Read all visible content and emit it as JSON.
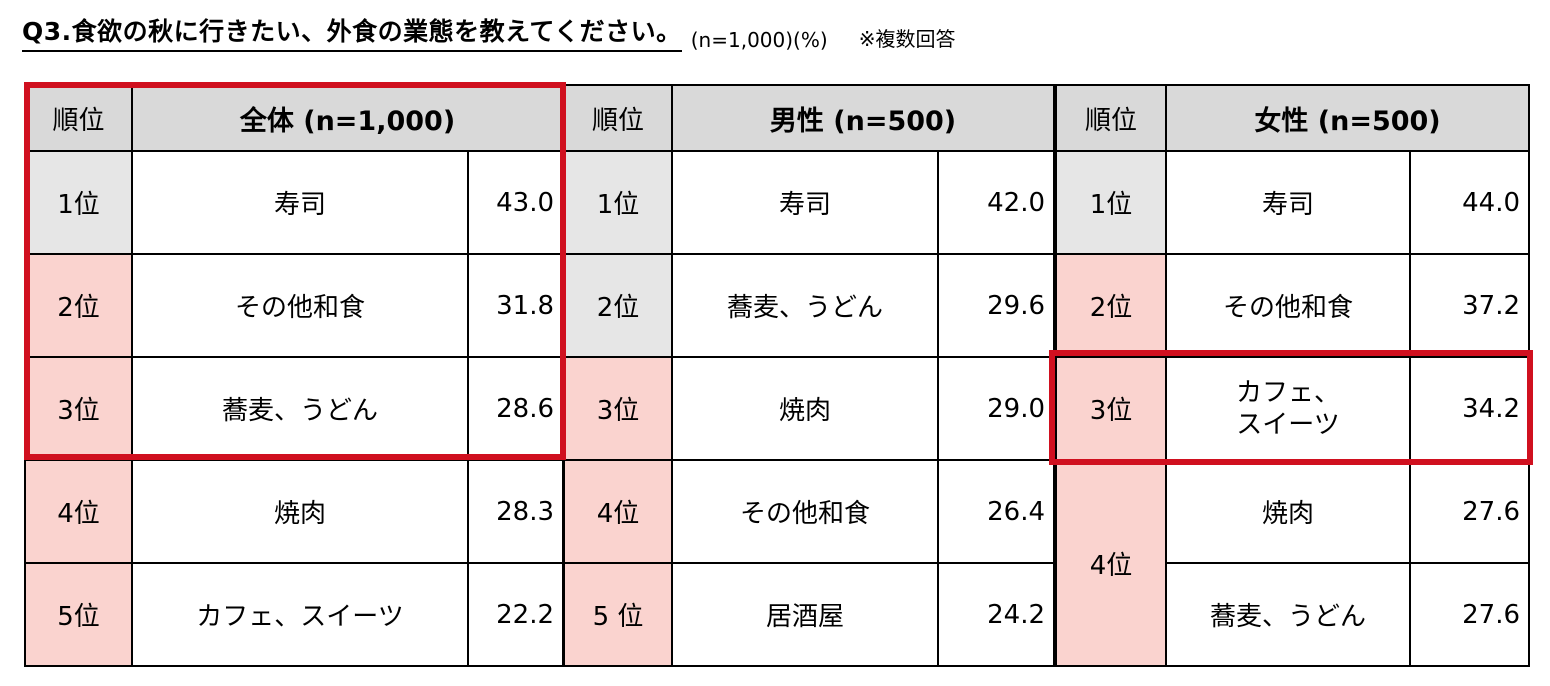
{
  "title": "Q3.食欲の秋に行きたい、外食の業態を教えてください。",
  "sample_note": "(n=1,000)(%)",
  "answer_type": "※複数回答",
  "highlight_color": "#d0101f",
  "rank_pink": "#fad3cf",
  "rank_gray": "#e6e6e6",
  "tables": [
    {
      "rank_header": "順位",
      "group_header": "全体 (n=1,000)",
      "rows": [
        {
          "rank": "1位",
          "item": "寿司",
          "value": "43.0"
        },
        {
          "rank": "2位",
          "item": "その他和食",
          "value": "31.8"
        },
        {
          "rank": "3位",
          "item": "蕎麦、うどん",
          "value": "28.6"
        },
        {
          "rank": "4位",
          "item": "焼肉",
          "value": "28.3"
        },
        {
          "rank": "5位",
          "item": "カフェ、スイーツ",
          "value": "22.2"
        }
      ]
    },
    {
      "rank_header": "順位",
      "group_header": "男性 (n=500)",
      "rows": [
        {
          "rank": "1位",
          "item": "寿司",
          "value": "42.0"
        },
        {
          "rank": "2位",
          "item": "蕎麦、うどん",
          "value": "29.6"
        },
        {
          "rank": "3位",
          "item": "焼肉",
          "value": "29.0"
        },
        {
          "rank": "4位",
          "item": "その他和食",
          "value": "26.4"
        },
        {
          "rank": "5 位",
          "item": "居酒屋",
          "value": "24.2"
        }
      ]
    },
    {
      "rank_header": "順位",
      "group_header": "女性 (n=500)",
      "rows": [
        {
          "rank": "1位",
          "item": "寿司",
          "value": "44.0"
        },
        {
          "rank": "2位",
          "item": "その他和食",
          "value": "37.2"
        },
        {
          "rank": "3位",
          "item_line1": "カフェ、",
          "item_line2": "スイーツ",
          "value": "34.2"
        },
        {
          "rank": "4位",
          "item": "焼肉",
          "value": "27.6"
        },
        {
          "item": "蕎麦、うどん",
          "value": "27.6"
        }
      ]
    }
  ]
}
